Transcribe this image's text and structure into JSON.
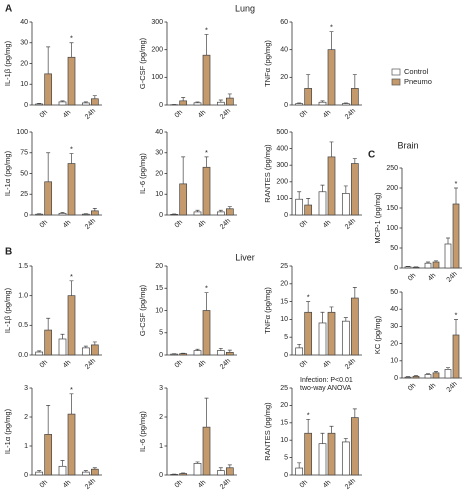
{
  "figure": {
    "panel_labels": [
      "A",
      "B",
      "C"
    ],
    "sections": [
      "Lung",
      "Liver",
      "Brain"
    ]
  },
  "chart_data": [
    {
      "type": "bar",
      "ylabel": "IL-1β (pg/mg)",
      "categories": [
        "0h",
        "4h",
        "24h"
      ],
      "ylim": [
        0,
        40
      ],
      "yticks": [
        0,
        10,
        20,
        30,
        40
      ],
      "series": [
        {
          "name": "Control",
          "color": "#ffffff",
          "values": [
            0.5,
            1.5,
            1
          ],
          "errors": [
            0.3,
            0.5,
            0.5
          ]
        },
        {
          "name": "Pneumo",
          "color": "#c49a6c",
          "values": [
            15,
            23,
            3
          ],
          "errors": [
            13,
            7,
            1.5
          ]
        }
      ],
      "annotations": [
        {
          "text": "*",
          "category": "4h"
        }
      ]
    },
    {
      "type": "bar",
      "ylabel": "G-CSF (pg/mg)",
      "categories": [
        "0h",
        "4h",
        "24h"
      ],
      "ylim": [
        0,
        300
      ],
      "yticks": [
        0,
        100,
        200,
        300
      ],
      "series": [
        {
          "name": "Control",
          "color": "#ffffff",
          "values": [
            1,
            8,
            10
          ],
          "errors": [
            1,
            3,
            8
          ]
        },
        {
          "name": "Pneumo",
          "color": "#c49a6c",
          "values": [
            15,
            180,
            25
          ],
          "errors": [
            12,
            75,
            15
          ]
        }
      ],
      "annotations": [
        {
          "text": "*",
          "category": "4h"
        }
      ]
    },
    {
      "type": "bar",
      "ylabel": "TNFα (pg/mg)",
      "categories": [
        "0h",
        "4h",
        "24h"
      ],
      "ylim": [
        0,
        60
      ],
      "yticks": [
        0,
        20,
        40,
        60
      ],
      "series": [
        {
          "name": "Control",
          "color": "#ffffff",
          "values": [
            1,
            2,
            1
          ],
          "errors": [
            0.5,
            1,
            0.5
          ]
        },
        {
          "name": "Pneumo",
          "color": "#c49a6c",
          "values": [
            12,
            40,
            12
          ],
          "errors": [
            10,
            13,
            10
          ]
        }
      ],
      "annotations": [
        {
          "text": "*",
          "category": "4h"
        }
      ]
    },
    {
      "type": "bar",
      "ylabel": "IL-1α (pg/mg)",
      "categories": [
        "0h",
        "4h",
        "24h"
      ],
      "ylim": [
        0,
        100
      ],
      "yticks": [
        0,
        25,
        50,
        75,
        100
      ],
      "series": [
        {
          "name": "Control",
          "color": "#ffffff",
          "values": [
            1,
            2,
            1
          ],
          "errors": [
            0.5,
            1,
            0.5
          ]
        },
        {
          "name": "Pneumo",
          "color": "#c49a6c",
          "values": [
            40,
            62,
            5
          ],
          "errors": [
            35,
            12,
            3
          ]
        }
      ],
      "annotations": [
        {
          "text": "*",
          "category": "4h"
        }
      ]
    },
    {
      "type": "bar",
      "ylabel": "IL-6 (pg/mg)",
      "categories": [
        "0h",
        "4h",
        "24h"
      ],
      "ylim": [
        0,
        40
      ],
      "yticks": [
        0,
        10,
        20,
        30,
        40
      ],
      "series": [
        {
          "name": "Control",
          "color": "#ffffff",
          "values": [
            0.3,
            1.5,
            1.5
          ],
          "errors": [
            0.2,
            0.8,
            0.8
          ]
        },
        {
          "name": "Pneumo",
          "color": "#c49a6c",
          "values": [
            15,
            23,
            3
          ],
          "errors": [
            13,
            5,
            1
          ]
        }
      ],
      "annotations": [
        {
          "text": "*",
          "category": "4h"
        }
      ]
    },
    {
      "type": "bar",
      "ylabel": "RANTES (pg/mg)",
      "categories": [
        "0h",
        "4h",
        "24h"
      ],
      "ylim": [
        0,
        500
      ],
      "yticks": [
        0,
        100,
        200,
        300,
        400,
        500
      ],
      "series": [
        {
          "name": "Control",
          "color": "#ffffff",
          "values": [
            95,
            140,
            130
          ],
          "errors": [
            45,
            40,
            45
          ]
        },
        {
          "name": "Pneumo",
          "color": "#c49a6c",
          "values": [
            60,
            350,
            310
          ],
          "errors": [
            40,
            90,
            30
          ]
        }
      ]
    },
    {
      "type": "bar",
      "ylabel": "MCP-1 (pg/mg)",
      "categories": [
        "0h",
        "4h",
        "24h"
      ],
      "ylim": [
        0,
        250
      ],
      "yticks": [
        0,
        50,
        100,
        150,
        200,
        250
      ],
      "series": [
        {
          "name": "Control",
          "color": "#ffffff",
          "values": [
            3,
            12,
            60
          ],
          "errors": [
            1,
            3,
            15
          ]
        },
        {
          "name": "Pneumo",
          "color": "#c49a6c",
          "values": [
            2,
            15,
            160
          ],
          "errors": [
            1,
            3,
            40
          ]
        }
      ],
      "annotations": [
        {
          "text": "*",
          "category": "24h"
        }
      ]
    },
    {
      "type": "bar",
      "ylabel": "KC (pg/mg)",
      "categories": [
        "0h",
        "4h",
        "24h"
      ],
      "ylim": [
        0,
        50
      ],
      "yticks": [
        0,
        10,
        20,
        30,
        40,
        50
      ],
      "series": [
        {
          "name": "Control",
          "color": "#ffffff",
          "values": [
            0.5,
            2,
            5
          ],
          "errors": [
            0.3,
            0.5,
            1
          ]
        },
        {
          "name": "Pneumo",
          "color": "#c49a6c",
          "values": [
            1,
            3,
            25
          ],
          "errors": [
            0.5,
            0.8,
            9
          ]
        }
      ],
      "annotations": [
        {
          "text": "*",
          "category": "24h"
        }
      ]
    },
    {
      "type": "bar",
      "ylabel": "IL-1β (pg/mg)",
      "categories": [
        "0h",
        "4h",
        "24h"
      ],
      "ylim": [
        0,
        1.5
      ],
      "yticks": [
        {
          "value": 0,
          "label": "0.0"
        },
        0.5,
        {
          "value": 1,
          "label": "1.0"
        },
        1.5
      ],
      "series": [
        {
          "name": "Control",
          "color": "#ffffff",
          "values": [
            0.05,
            0.27,
            0.12
          ],
          "errors": [
            0.02,
            0.08,
            0.03
          ]
        },
        {
          "name": "Pneumo",
          "color": "#c49a6c",
          "values": [
            0.42,
            1.0,
            0.17
          ],
          "errors": [
            0.2,
            0.25,
            0.05
          ]
        }
      ],
      "annotations": [
        {
          "text": "*",
          "category": "4h"
        }
      ]
    },
    {
      "type": "bar",
      "ylabel": "G-CSF (pg/mg)",
      "categories": [
        "0h",
        "4h",
        "24h"
      ],
      "ylim": [
        0,
        20
      ],
      "yticks": [
        0,
        5,
        10,
        15,
        20
      ],
      "series": [
        {
          "name": "Control",
          "color": "#ffffff",
          "values": [
            0.2,
            1,
            1
          ],
          "errors": [
            0.1,
            0.3,
            0.5
          ]
        },
        {
          "name": "Pneumo",
          "color": "#c49a6c",
          "values": [
            0.3,
            10,
            0.6
          ],
          "errors": [
            0.1,
            4,
            0.5
          ]
        }
      ],
      "annotations": [
        {
          "text": "*",
          "category": "4h"
        }
      ]
    },
    {
      "type": "bar",
      "ylabel": "TNFα (pg/mg)",
      "categories": [
        "0h",
        "4h",
        "24h"
      ],
      "ylim": [
        0,
        25
      ],
      "yticks": [
        0,
        5,
        10,
        15,
        20,
        25
      ],
      "series": [
        {
          "name": "Control",
          "color": "#ffffff",
          "values": [
            2,
            9,
            9.5
          ],
          "errors": [
            1,
            3,
            1
          ]
        },
        {
          "name": "Pneumo",
          "color": "#c49a6c",
          "values": [
            12,
            12,
            16
          ],
          "errors": [
            3,
            1.5,
            3
          ]
        }
      ],
      "annotations": [
        {
          "text": "*",
          "category": "0h"
        }
      ]
    },
    {
      "type": "bar",
      "ylabel": "IL-1α (pg/mg)",
      "categories": [
        "0h",
        "4h",
        "24h"
      ],
      "ylim": [
        0,
        3
      ],
      "yticks": [
        0,
        1,
        2,
        3
      ],
      "series": [
        {
          "name": "Control",
          "color": "#ffffff",
          "values": [
            0.1,
            0.3,
            0.1
          ],
          "errors": [
            0.05,
            0.2,
            0.05
          ]
        },
        {
          "name": "Pneumo",
          "color": "#c49a6c",
          "values": [
            1.4,
            2.1,
            0.2
          ],
          "errors": [
            1,
            0.7,
            0.05
          ]
        }
      ],
      "annotations": [
        {
          "text": "*",
          "category": "4h"
        }
      ]
    },
    {
      "type": "bar",
      "ylabel": "IL-6 (pg/mg)",
      "categories": [
        "0h",
        "4h",
        "24h"
      ],
      "ylim": [
        0,
        3
      ],
      "yticks": [
        0,
        1,
        2,
        3
      ],
      "series": [
        {
          "name": "Control",
          "color": "#ffffff",
          "values": [
            0.02,
            0.4,
            0.15
          ],
          "errors": [
            0.01,
            0.05,
            0.1
          ]
        },
        {
          "name": "Pneumo",
          "color": "#c49a6c",
          "values": [
            0.05,
            1.65,
            0.25
          ],
          "errors": [
            0.02,
            1,
            0.1
          ]
        }
      ]
    },
    {
      "type": "bar",
      "ylabel": "RANTES (pg/mg)",
      "categories": [
        "0h",
        "4h",
        "24h"
      ],
      "ylim": [
        0,
        25
      ],
      "yticks": [
        0,
        5,
        10,
        15,
        20,
        25
      ],
      "series": [
        {
          "name": "Control",
          "color": "#ffffff",
          "values": [
            2,
            9,
            9.5
          ],
          "errors": [
            1.5,
            3,
            1
          ]
        },
        {
          "name": "Pneumo",
          "color": "#c49a6c",
          "values": [
            12,
            12,
            16.5
          ],
          "errors": [
            4,
            2,
            2.5
          ]
        }
      ],
      "annotations": [
        {
          "text": "*",
          "category": "0h"
        }
      ],
      "note": [
        "Infection: P<0.01",
        "two-way ANOVA"
      ]
    }
  ]
}
